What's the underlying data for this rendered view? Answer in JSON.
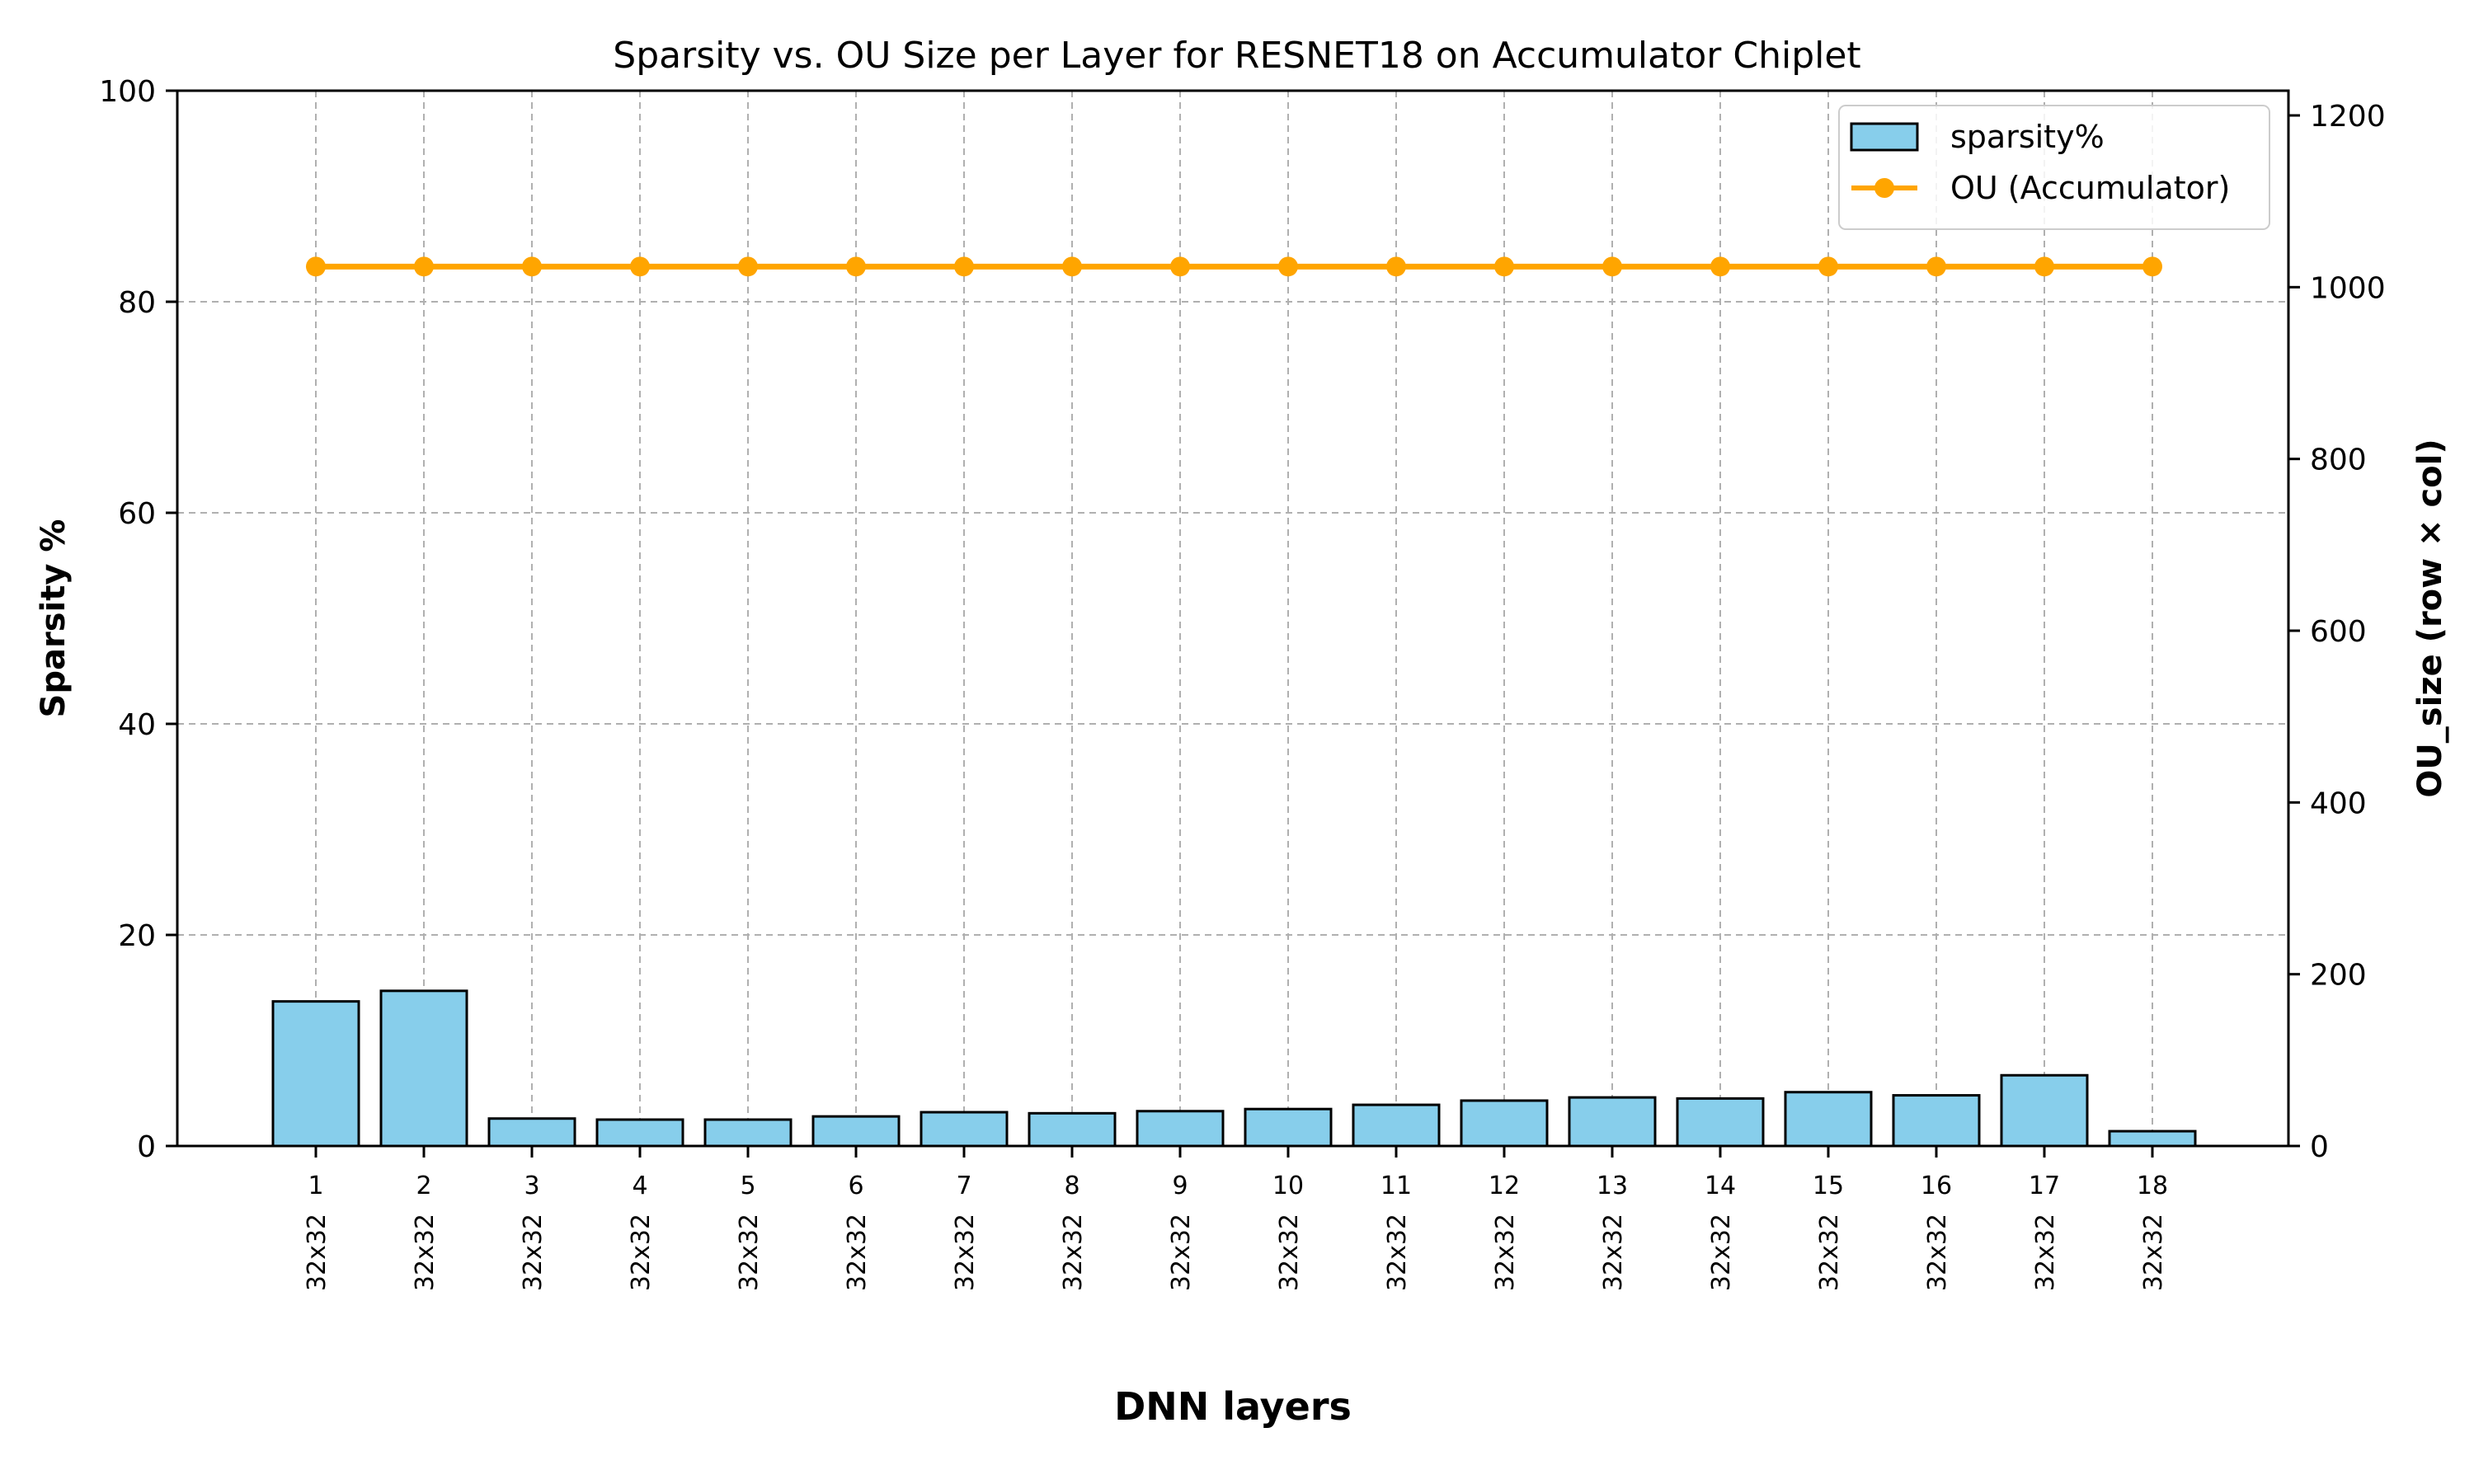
{
  "chart_data": {
    "type": "bar",
    "title": "Sparsity vs. OU Size per Layer for RESNET18 on Accumulator Chiplet",
    "xlabel": "DNN layers",
    "ylabel": "Sparsity %",
    "y2label": "OU_size (row × col)",
    "categories": [
      "1",
      "2",
      "3",
      "4",
      "5",
      "6",
      "7",
      "8",
      "9",
      "10",
      "11",
      "12",
      "13",
      "14",
      "15",
      "16",
      "17",
      "18"
    ],
    "ou_labels": [
      "32x32",
      "32x32",
      "32x32",
      "32x32",
      "32x32",
      "32x32",
      "32x32",
      "32x32",
      "32x32",
      "32x32",
      "32x32",
      "32x32",
      "32x32",
      "32x32",
      "32x32",
      "32x32",
      "32x32",
      "32x32"
    ],
    "ylim": [
      0,
      100
    ],
    "y2lim": [
      0,
      1228.8
    ],
    "yticks": [
      0,
      20,
      40,
      60,
      80,
      100
    ],
    "y2ticks": [
      0,
      200,
      400,
      600,
      800,
      1000,
      1200
    ],
    "grid": true,
    "legend_position": "top-right",
    "series": [
      {
        "name": "sparsity%",
        "kind": "bar",
        "axis": "left",
        "color": "#87ceeb",
        "values": [
          13.7,
          14.7,
          2.6,
          2.5,
          2.5,
          2.8,
          3.2,
          3.1,
          3.3,
          3.5,
          3.9,
          4.3,
          4.6,
          4.5,
          5.1,
          4.8,
          6.7,
          1.4
        ]
      },
      {
        "name": "OU (Accumulator)",
        "kind": "line",
        "axis": "right",
        "color": "#ffa500",
        "values": [
          1024,
          1024,
          1024,
          1024,
          1024,
          1024,
          1024,
          1024,
          1024,
          1024,
          1024,
          1024,
          1024,
          1024,
          1024,
          1024,
          1024,
          1024
        ]
      }
    ]
  }
}
